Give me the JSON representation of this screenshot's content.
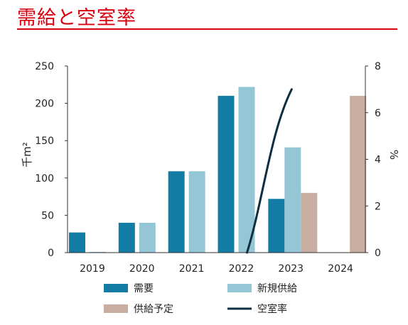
{
  "header": {
    "title": "需給と空室率"
  },
  "colors": {
    "title": "#d7000f",
    "demand": "#137ca4",
    "new_supply": "#95c6d6",
    "planned_supply": "#c8ada0",
    "vacancy": "#0e2e42",
    "axis": "#333333"
  },
  "chart_data": {
    "type": "bar",
    "categories": [
      "2019",
      "2020",
      "2021",
      "2022",
      "2023",
      "2024"
    ],
    "left_axis": {
      "label": "千m²",
      "ylim": [
        0,
        250
      ],
      "ticks": [
        "0",
        "50",
        "100",
        "150",
        "200",
        "250"
      ]
    },
    "right_axis": {
      "label": "%",
      "ylim": [
        0,
        8
      ],
      "ticks": [
        "0",
        "2",
        "4",
        "6",
        "8"
      ]
    },
    "series": [
      {
        "name": "需要",
        "type": "bar",
        "axis": "left",
        "color": "#137ca4",
        "values": [
          27,
          40,
          109,
          210,
          72,
          0
        ]
      },
      {
        "name": "新規供給",
        "type": "bar",
        "axis": "left",
        "color": "#95c6d6",
        "values": [
          1,
          40,
          109,
          222,
          141,
          0
        ]
      },
      {
        "name": "供給予定",
        "type": "bar",
        "axis": "left",
        "color": "#c8ada0",
        "values": [
          0,
          0,
          0,
          0,
          80,
          210
        ]
      },
      {
        "name": "空室率",
        "type": "line",
        "axis": "right",
        "color": "#0e2e42",
        "x": [
          "2022",
          "2023"
        ],
        "values": [
          0,
          7
        ]
      }
    ],
    "grid": false,
    "legend_position": "bottom"
  }
}
